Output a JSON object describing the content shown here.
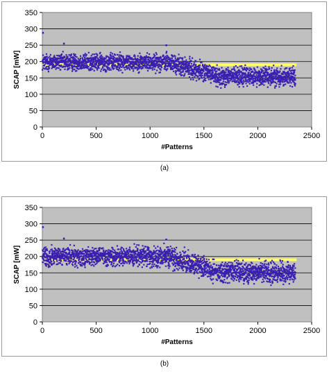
{
  "figure": {
    "captions": [
      "(a)",
      "(b)"
    ]
  },
  "chart_data": [
    {
      "type": "scatter",
      "xlabel": "#Patterns",
      "ylabel": "SCAP [mW]",
      "xlim": [
        0,
        2500
      ],
      "ylim": [
        0,
        350
      ],
      "xticks": [
        0,
        500,
        1000,
        1500,
        2000,
        2500
      ],
      "yticks": [
        0,
        50,
        100,
        150,
        200,
        250,
        300,
        350
      ],
      "grid": "horizontal",
      "point_count": 2350,
      "threshold_line": {
        "y": 190,
        "color": "#ffff66"
      },
      "point_color": "#3a1fb0",
      "plot_background": "#c0c0c0",
      "trend_segments": [
        {
          "x_start": 0,
          "x_end": 1150,
          "mean": 198,
          "spread": 18
        },
        {
          "x_start": 1150,
          "x_end": 1600,
          "mean_start": 198,
          "mean_end": 160,
          "spread": 20
        },
        {
          "x_start": 1600,
          "x_end": 2350,
          "mean": 155,
          "spread": 20
        }
      ],
      "notable_points": [
        {
          "x": 5,
          "y": 288
        },
        {
          "x": 200,
          "y": 255
        },
        {
          "x": 1150,
          "y": 250
        }
      ]
    },
    {
      "type": "scatter",
      "xlabel": "#Patterns",
      "ylabel": "SCAP [mW]",
      "xlim": [
        0,
        2500
      ],
      "ylim": [
        0,
        350
      ],
      "xticks": [
        0,
        500,
        1000,
        1500,
        2000,
        2500
      ],
      "yticks": [
        0,
        50,
        100,
        150,
        200,
        250,
        300,
        350
      ],
      "grid": "horizontal",
      "point_count": 2350,
      "threshold_line": {
        "y": 190,
        "color": "#ffff66"
      },
      "point_color": "#3a1fb0",
      "plot_background": "#c0c0c0",
      "trend_segments": [
        {
          "x_start": 0,
          "x_end": 1150,
          "mean": 200,
          "spread": 20
        },
        {
          "x_start": 1150,
          "x_end": 1600,
          "mean_start": 200,
          "mean_end": 158,
          "spread": 22
        },
        {
          "x_start": 1600,
          "x_end": 2350,
          "mean": 152,
          "spread": 22
        }
      ],
      "notable_points": [
        {
          "x": 5,
          "y": 290
        },
        {
          "x": 200,
          "y": 255
        },
        {
          "x": 1150,
          "y": 252
        }
      ]
    }
  ]
}
